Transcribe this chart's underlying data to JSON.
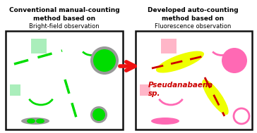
{
  "title_left_line1": "Conventional manual-counting",
  "title_left_line2": "method based on",
  "title_left_line3": "Bright-field observation",
  "title_right_line1": "Developed auto-counting",
  "title_right_line2": "method based on",
  "title_right_line3": "Fluorescence observation",
  "arrow_color": "#ee1111",
  "green_bright": "#00dd00",
  "green_light": "#aaeebb",
  "gray_ring": "#999999",
  "pink_bright": "#ff69b4",
  "pink_light": "#ffb6c8",
  "yellow_hl": "#eeff00",
  "red_dashed": "#cc0000",
  "pseudo_color": "#cc0000",
  "box_color": "#111111",
  "bg": "#ffffff"
}
